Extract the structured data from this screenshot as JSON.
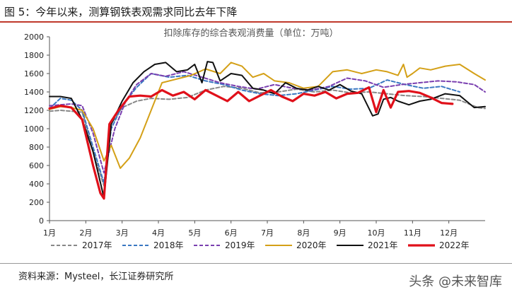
{
  "figure_title": "图 5：今年以来，测算钢铁表观需求同比去年下降",
  "source": "资料来源：Mysteel，长江证券研究所",
  "watermark": "头条 @未来智库",
  "chart_data": {
    "type": "line",
    "title": "扣除库存的综合表观消费量（单位：万吨）",
    "ylim": [
      0,
      2000
    ],
    "yticks": [
      0,
      200,
      400,
      600,
      800,
      1000,
      1200,
      1400,
      1600,
      1800,
      2000
    ],
    "xlim": [
      1,
      13
    ],
    "xticks": [
      1,
      2,
      3,
      4,
      5,
      6,
      7,
      8,
      9,
      10,
      11,
      12
    ],
    "xtick_labels": [
      "1月",
      "2月",
      "3月",
      "4月",
      "5月",
      "6月",
      "7月",
      "8月",
      "9月",
      "10月",
      "11月",
      "12月"
    ],
    "grid": false,
    "legend": "bottom",
    "series": [
      {
        "name": "2017年",
        "color": "#888888",
        "dash": "5,3",
        "width": 2,
        "x": [
          1,
          1.3,
          1.6,
          1.9,
          2.2,
          2.5,
          2.7,
          3.0,
          3.4,
          3.8,
          4.3,
          4.8,
          5.3,
          5.8,
          6.3,
          6.8,
          7.3,
          7.8,
          8.3,
          8.8,
          9.3,
          9.8,
          10.3,
          10.8,
          11.3,
          11.8,
          12.3,
          12.8,
          13
        ],
        "y": [
          1190,
          1200,
          1190,
          1180,
          750,
          380,
          1050,
          1230,
          1300,
          1330,
          1320,
          1340,
          1420,
          1460,
          1440,
          1390,
          1400,
          1430,
          1400,
          1420,
          1390,
          1400,
          1380,
          1360,
          1350,
          1330,
          1310,
          1230,
          1220
        ]
      },
      {
        "name": "2018年",
        "color": "#3a78c2",
        "dash": "5,3",
        "width": 2,
        "x": [
          1,
          1.3,
          1.6,
          1.9,
          2.2,
          2.5,
          2.7,
          3.0,
          3.4,
          3.8,
          4.3,
          4.8,
          5.3,
          5.8,
          6.3,
          6.8,
          7.3,
          7.8,
          8.3,
          8.8,
          9.3,
          9.8,
          10.3,
          10.8,
          11.3,
          11.8,
          12.3
        ],
        "y": [
          1220,
          1330,
          1310,
          1200,
          800,
          410,
          1000,
          1250,
          1450,
          1600,
          1560,
          1580,
          1520,
          1480,
          1420,
          1380,
          1360,
          1380,
          1420,
          1460,
          1430,
          1440,
          1530,
          1480,
          1440,
          1460,
          1400
        ]
      },
      {
        "name": "2019年",
        "color": "#7a3fb0",
        "dash": "5,3",
        "width": 2,
        "x": [
          1,
          1.3,
          1.6,
          1.9,
          2.2,
          2.5,
          2.8,
          3.1,
          3.4,
          3.8,
          4.2,
          4.7,
          5.2,
          5.7,
          6.2,
          6.7,
          7.2,
          7.7,
          8.2,
          8.7,
          9.2,
          9.7,
          10.2,
          10.7,
          11.2,
          11.7,
          12.2,
          12.7,
          13
        ],
        "y": [
          1250,
          1260,
          1270,
          1250,
          950,
          520,
          1000,
          1300,
          1480,
          1600,
          1570,
          1620,
          1560,
          1500,
          1460,
          1430,
          1480,
          1440,
          1420,
          1460,
          1550,
          1520,
          1450,
          1480,
          1500,
          1520,
          1510,
          1480,
          1400
        ]
      },
      {
        "name": "2020年",
        "color": "#d4a017",
        "dash": "",
        "width": 2,
        "x": [
          1,
          1.3,
          1.6,
          1.9,
          2.2,
          2.5,
          2.7,
          2.95,
          3.2,
          3.5,
          3.8,
          4.1,
          4.5,
          4.9,
          5.3,
          5.7,
          6.0,
          6.3,
          6.6,
          6.9,
          7.2,
          7.6,
          8.0,
          8.4,
          8.8,
          9.2,
          9.6,
          10.0,
          10.3,
          10.6,
          10.75,
          10.85,
          11.0,
          11.2,
          11.5,
          11.9,
          12.3,
          12.7,
          13
        ],
        "y": [
          1210,
          1240,
          1230,
          1200,
          1000,
          650,
          820,
          570,
          680,
          900,
          1200,
          1500,
          1540,
          1580,
          1650,
          1600,
          1720,
          1680,
          1560,
          1600,
          1520,
          1500,
          1440,
          1460,
          1620,
          1640,
          1600,
          1640,
          1620,
          1580,
          1700,
          1560,
          1600,
          1660,
          1640,
          1680,
          1700,
          1600,
          1530
        ]
      },
      {
        "name": "2021年",
        "color": "#111111",
        "dash": "",
        "width": 2,
        "x": [
          1,
          1.3,
          1.6,
          1.9,
          2.2,
          2.5,
          2.7,
          3.0,
          3.3,
          3.6,
          3.9,
          4.2,
          4.5,
          4.8,
          5.0,
          5.2,
          5.35,
          5.5,
          5.7,
          6.0,
          6.3,
          6.6,
          6.9,
          7.2,
          7.5,
          7.8,
          8.1,
          8.4,
          8.7,
          9.0,
          9.3,
          9.6,
          9.9,
          10.05,
          10.2,
          10.4,
          10.6,
          10.9,
          11.2,
          11.5,
          11.9,
          12.3,
          12.7,
          13
        ],
        "y": [
          1350,
          1350,
          1330,
          1100,
          750,
          250,
          1050,
          1300,
          1500,
          1620,
          1700,
          1720,
          1620,
          1640,
          1700,
          1500,
          1730,
          1720,
          1520,
          1600,
          1580,
          1440,
          1420,
          1380,
          1500,
          1440,
          1420,
          1460,
          1420,
          1480,
          1410,
          1380,
          1140,
          1160,
          1320,
          1340,
          1300,
          1260,
          1300,
          1320,
          1380,
          1360,
          1230,
          1240
        ]
      },
      {
        "name": "2022年",
        "color": "#e0101a",
        "dash": "",
        "width": 3.2,
        "x": [
          1,
          1.3,
          1.6,
          1.9,
          2.2,
          2.4,
          2.5,
          2.65,
          2.9,
          3.2,
          3.5,
          3.8,
          4.1,
          4.4,
          4.7,
          5.0,
          5.3,
          5.6,
          5.9,
          6.2,
          6.5,
          6.8,
          7.1,
          7.4,
          7.7,
          8.0,
          8.3,
          8.6,
          8.9,
          9.2,
          9.5,
          9.8,
          10.0,
          10.2,
          10.4,
          10.6,
          10.9,
          11.2,
          11.5,
          11.8,
          12.1
        ],
        "y": [
          1220,
          1250,
          1230,
          1100,
          600,
          300,
          240,
          1050,
          1200,
          1350,
          1360,
          1350,
          1420,
          1360,
          1400,
          1320,
          1420,
          1360,
          1300,
          1400,
          1300,
          1360,
          1420,
          1350,
          1300,
          1380,
          1360,
          1400,
          1330,
          1380,
          1390,
          1450,
          1180,
          1420,
          1230,
          1400,
          1410,
          1390,
          1340,
          1280,
          1270
        ]
      }
    ]
  }
}
